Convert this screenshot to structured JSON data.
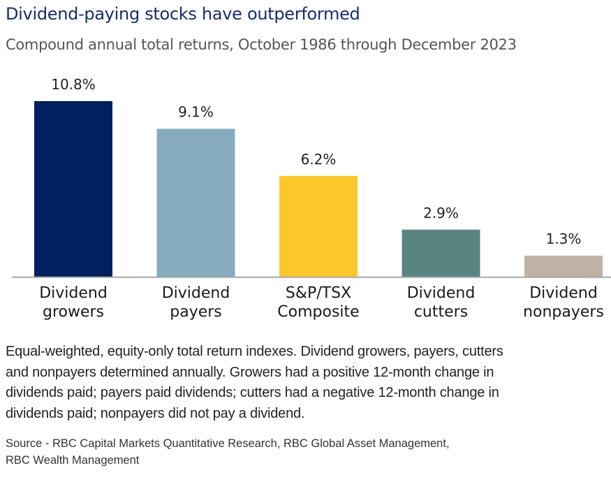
{
  "header": {
    "title": "Dividend-paying stocks have outperformed",
    "subtitle": "Compound annual total returns, October 1986 through December 2023"
  },
  "chart_data": {
    "type": "bar",
    "title": "Dividend-paying stocks have outperformed",
    "subtitle": "Compound annual total returns, October 1986 through December 2023",
    "xlabel": "",
    "ylabel": "",
    "ylim": [
      0,
      10.8
    ],
    "grid": false,
    "legend": "none",
    "categories": [
      [
        "Dividend",
        "growers"
      ],
      [
        "Dividend",
        "payers"
      ],
      [
        "S&P/TSX",
        "Composite"
      ],
      [
        "Dividend",
        "cutters"
      ],
      [
        "Dividend",
        "nonpayers"
      ]
    ],
    "values": [
      10.8,
      9.1,
      6.2,
      2.9,
      1.3
    ],
    "value_labels": [
      "10.8%",
      "9.1%",
      "6.2%",
      "2.9%",
      "1.3%"
    ],
    "colors": [
      "#002060",
      "#87abbe",
      "#fdc62a",
      "#588580",
      "#bdb2a3"
    ],
    "axis_color": "#a6a6a6"
  },
  "footnote": {
    "lines": [
      "Equal-weighted, equity-only total return indexes. Dividend growers, payers, cutters",
      "and nonpayers determined annually. Growers had a positive 12-month change in",
      "dividends paid; payers paid dividends; cutters had a negative 12-month change in",
      "dividends paid; nonpayers did not pay a dividend."
    ],
    "source_lines": [
      "Source - RBC Capital Markets Quantitative Research, RBC Global Asset Management,",
      "RBC Wealth Management"
    ]
  }
}
